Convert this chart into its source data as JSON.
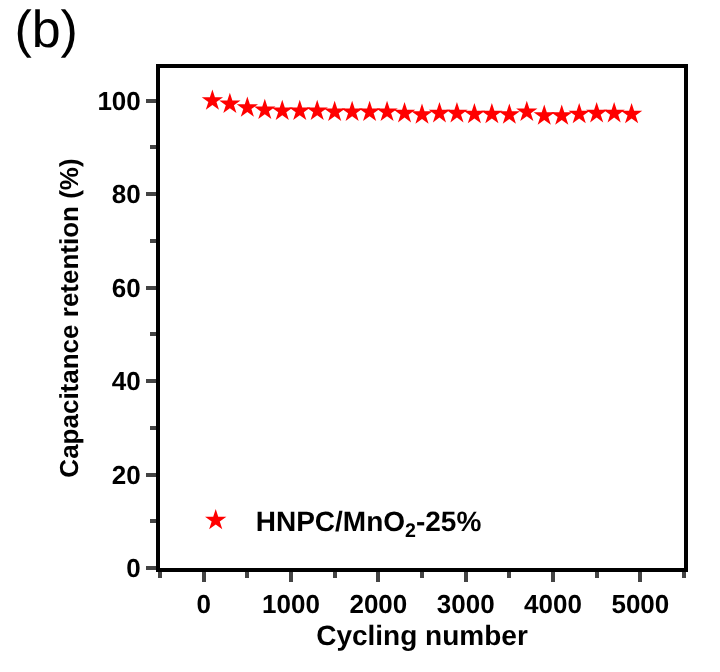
{
  "chart_data": {
    "type": "scatter",
    "title": "(b)",
    "xlabel": "Cycling number",
    "ylabel": "Capacitance retention (%)",
    "x": [
      100,
      300,
      500,
      700,
      900,
      1100,
      1300,
      1500,
      1700,
      1900,
      2100,
      2300,
      2500,
      2700,
      2900,
      3100,
      3300,
      3500,
      3700,
      3900,
      4100,
      4300,
      4500,
      4700,
      4900
    ],
    "series": [
      {
        "name": "HNPC/MnO$_{2}$-25%",
        "color": "#ff0000",
        "values": [
          100,
          99.3,
          98.5,
          98,
          97.8,
          97.8,
          97.8,
          97.6,
          97.6,
          97.6,
          97.6,
          97.3,
          97,
          97.3,
          97.3,
          97.1,
          97.1,
          97,
          97.6,
          96.8,
          96.8,
          97.1,
          97.3,
          97.3,
          97.1
        ]
      }
    ],
    "xlim": [
      -500,
      5500
    ],
    "xticks": [
      0,
      1000,
      2000,
      3000,
      4000,
      5000
    ],
    "ylim": [
      0,
      107
    ],
    "yticks": [
      0,
      20,
      40,
      60,
      80,
      100
    ],
    "grid": false,
    "legend": "bottom left",
    "marker": "star"
  }
}
